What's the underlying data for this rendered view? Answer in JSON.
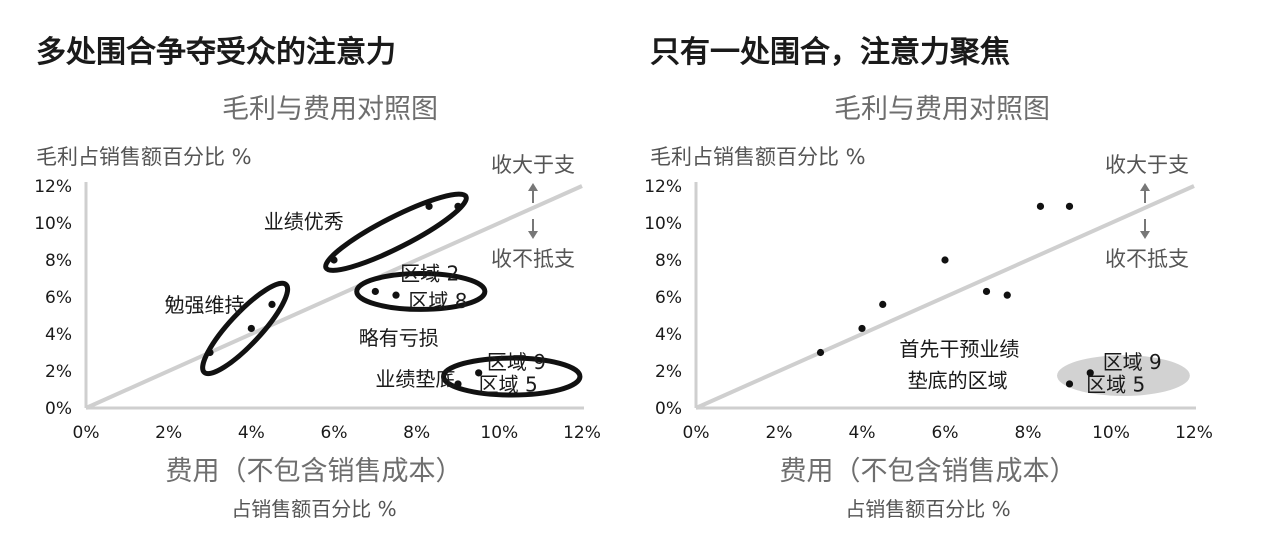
{
  "chart_data": [
    {
      "type": "scatter",
      "heading": "多处围合争夺受众的注意力",
      "title": "毛利与费用对照图",
      "ylabel": "毛利占销售额百分比 %",
      "xlabel": "费用（不包含销售成本）",
      "xlabel_sub": "占销售额百分比 %",
      "xlim": [
        0,
        12
      ],
      "ylim": [
        0,
        12
      ],
      "x_ticks": [
        "0%",
        "2%",
        "4%",
        "6%",
        "8%",
        "10%",
        "12%"
      ],
      "y_ticks": [
        "0%",
        "2%",
        "4%",
        "6%",
        "8%",
        "10%",
        "12%"
      ],
      "points": [
        {
          "x": 3.0,
          "y": 3.0
        },
        {
          "x": 4.0,
          "y": 4.3
        },
        {
          "x": 4.5,
          "y": 5.6
        },
        {
          "x": 6.0,
          "y": 8.0
        },
        {
          "x": 7.0,
          "y": 6.3
        },
        {
          "x": 7.5,
          "y": 6.1
        },
        {
          "x": 8.3,
          "y": 10.9
        },
        {
          "x": 9.0,
          "y": 10.9
        },
        {
          "x": 9.5,
          "y": 1.9
        },
        {
          "x": 9.0,
          "y": 1.3
        }
      ],
      "trendline": {
        "from": [
          0,
          0
        ],
        "to": [
          12,
          12
        ]
      },
      "arrow_labels": {
        "above": "收大于支",
        "below": "收不抵支"
      },
      "annotations": [
        {
          "text": "业绩优秀",
          "x": 4.3,
          "y": 9.7
        },
        {
          "text": "勉强维持",
          "x": 1.9,
          "y": 5.2
        },
        {
          "text": "略有亏损",
          "x": 6.6,
          "y": 3.4
        },
        {
          "text": "业绩垫底",
          "x": 7.0,
          "y": 1.2
        },
        {
          "text": "区域 2",
          "x": 7.6,
          "y": 6.9
        },
        {
          "text": "区域 8",
          "x": 7.8,
          "y": 5.4
        },
        {
          "text": "区域 9",
          "x": 9.7,
          "y": 2.1
        },
        {
          "text": "区域 5",
          "x": 9.5,
          "y": 0.9
        }
      ],
      "highlights": [
        {
          "kind": "ellipse",
          "cx": 7.5,
          "cy": 9.5,
          "rx": 1.9,
          "ry": 0.82,
          "rotate": -27
        },
        {
          "kind": "ellipse",
          "cx": 3.85,
          "cy": 4.3,
          "rx": 1.45,
          "ry": 0.85,
          "rotate": -47
        },
        {
          "kind": "ellipse",
          "cx": 8.1,
          "cy": 6.3,
          "rx": 1.55,
          "ry": 0.97,
          "rotate": 0
        },
        {
          "kind": "ellipse",
          "cx": 10.3,
          "cy": 1.7,
          "rx": 1.65,
          "ry": 1.0,
          "rotate": 0
        }
      ]
    },
    {
      "type": "scatter",
      "heading": "只有一处围合，注意力聚焦",
      "title": "毛利与费用对照图",
      "ylabel": "毛利占销售额百分比 %",
      "xlabel": "费用（不包含销售成本）",
      "xlabel_sub": "占销售额百分比 %",
      "xlim": [
        0,
        12
      ],
      "ylim": [
        0,
        12
      ],
      "x_ticks": [
        "0%",
        "2%",
        "4%",
        "6%",
        "8%",
        "10%",
        "12%"
      ],
      "y_ticks": [
        "0%",
        "2%",
        "4%",
        "6%",
        "8%",
        "10%",
        "12%"
      ],
      "points": [
        {
          "x": 3.0,
          "y": 3.0
        },
        {
          "x": 4.0,
          "y": 4.3
        },
        {
          "x": 4.5,
          "y": 5.6
        },
        {
          "x": 6.0,
          "y": 8.0
        },
        {
          "x": 7.0,
          "y": 6.3
        },
        {
          "x": 7.5,
          "y": 6.1
        },
        {
          "x": 8.3,
          "y": 10.9
        },
        {
          "x": 9.0,
          "y": 10.9
        },
        {
          "x": 9.5,
          "y": 1.9
        },
        {
          "x": 9.0,
          "y": 1.3
        }
      ],
      "trendline": {
        "from": [
          0,
          0
        ],
        "to": [
          12,
          12
        ]
      },
      "arrow_labels": {
        "above": "收大于支",
        "below": "收不抵支"
      },
      "annotations": [
        {
          "text": "首先干预业绩",
          "x": 4.9,
          "y": 2.8
        },
        {
          "text": "垫底的区域",
          "x": 5.1,
          "y": 1.1
        },
        {
          "text": "区域 9",
          "x": 9.8,
          "y": 2.1
        },
        {
          "text": "区域 5",
          "x": 9.4,
          "y": 0.9
        }
      ],
      "highlights": [
        {
          "kind": "shade",
          "cx": 10.3,
          "cy": 1.75,
          "rx": 1.6,
          "ry": 1.1,
          "rotate": 0
        }
      ]
    }
  ]
}
